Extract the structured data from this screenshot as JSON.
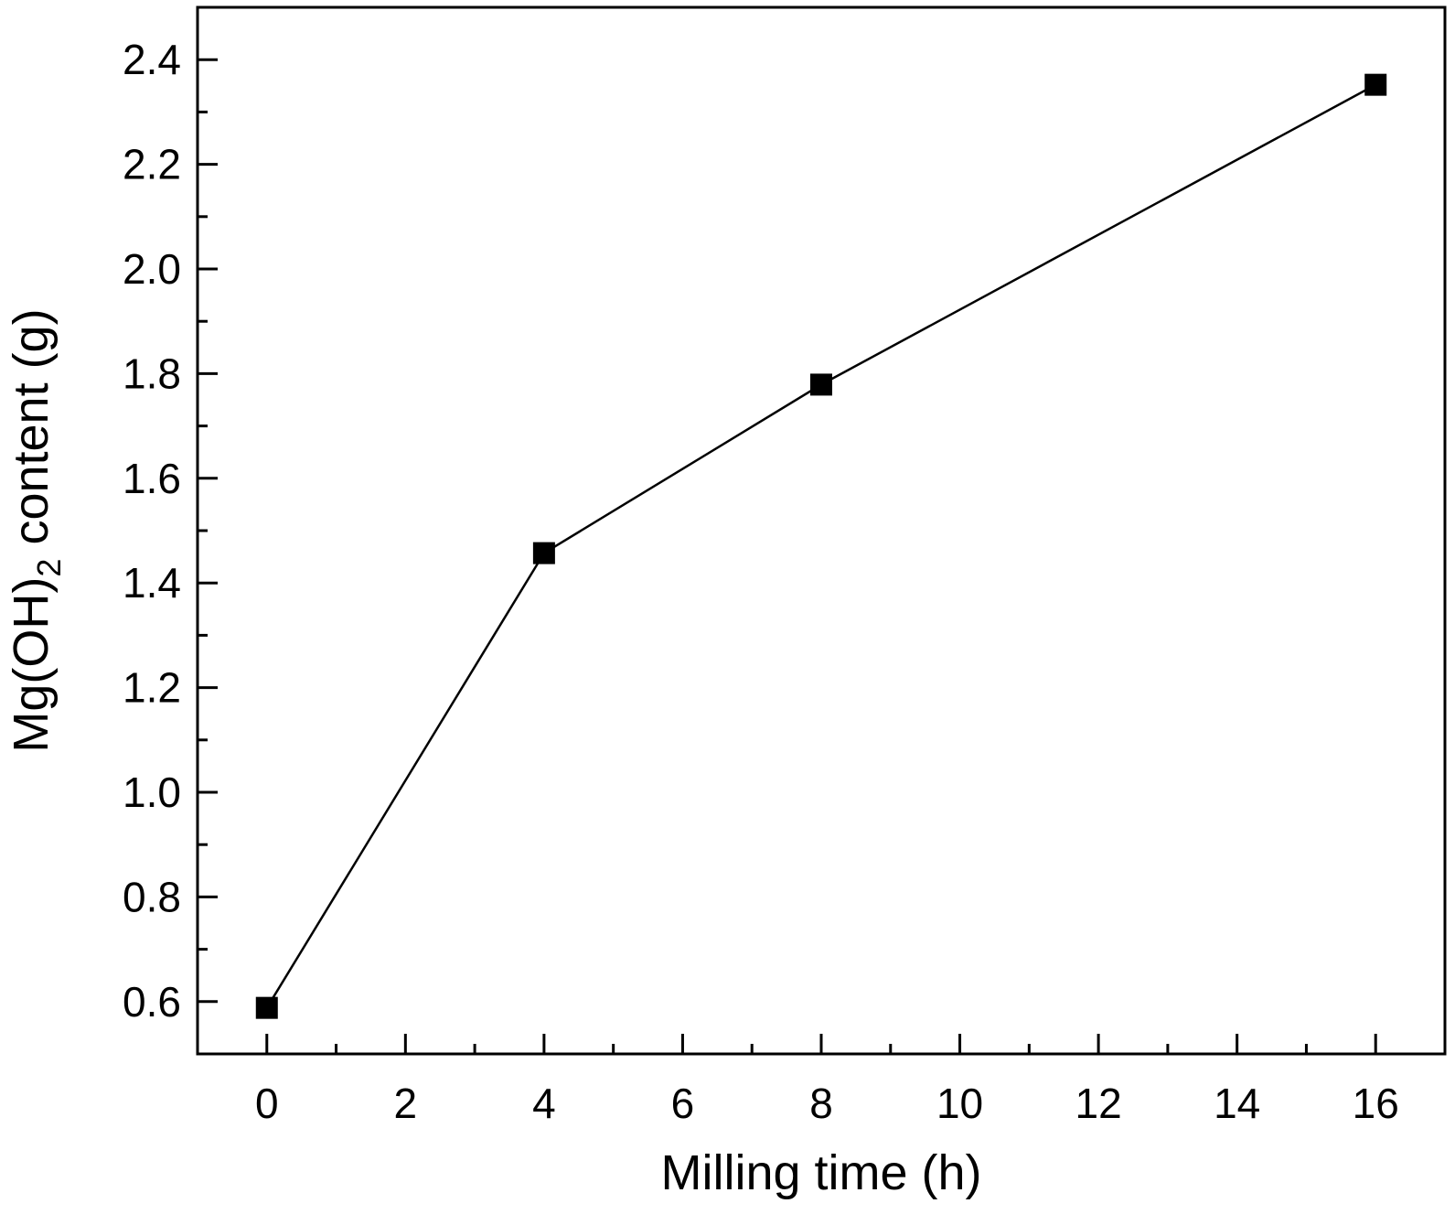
{
  "chart_data": {
    "type": "line",
    "title": "",
    "xlabel": "Milling time (h)",
    "ylabel_parts": {
      "main": "Mg(OH)",
      "subscript": "2",
      "rest": " content (g)"
    },
    "x": [
      0,
      4,
      8,
      16
    ],
    "series": [
      {
        "values": [
          0.588,
          1.457,
          1.779,
          2.352
        ],
        "marker": "square",
        "color": "#000000"
      }
    ],
    "xlim": [
      -1,
      17
    ],
    "ylim": [
      0.5,
      2.5
    ],
    "xticks": [
      0,
      2,
      4,
      6,
      8,
      10,
      12,
      14,
      16
    ],
    "xtick_labels": [
      "0",
      "2",
      "4",
      "6",
      "8",
      "10",
      "12",
      "14",
      "16"
    ],
    "yticks": [
      0.6,
      0.8,
      1.0,
      1.2,
      1.4,
      1.6,
      1.8,
      2.0,
      2.2,
      2.4
    ],
    "ytick_labels": [
      "0.6",
      "0.8",
      "1.0",
      "1.2",
      "1.4",
      "1.6",
      "1.8",
      "2.0",
      "2.2",
      "2.4"
    ],
    "grid": false,
    "legend": "none"
  }
}
